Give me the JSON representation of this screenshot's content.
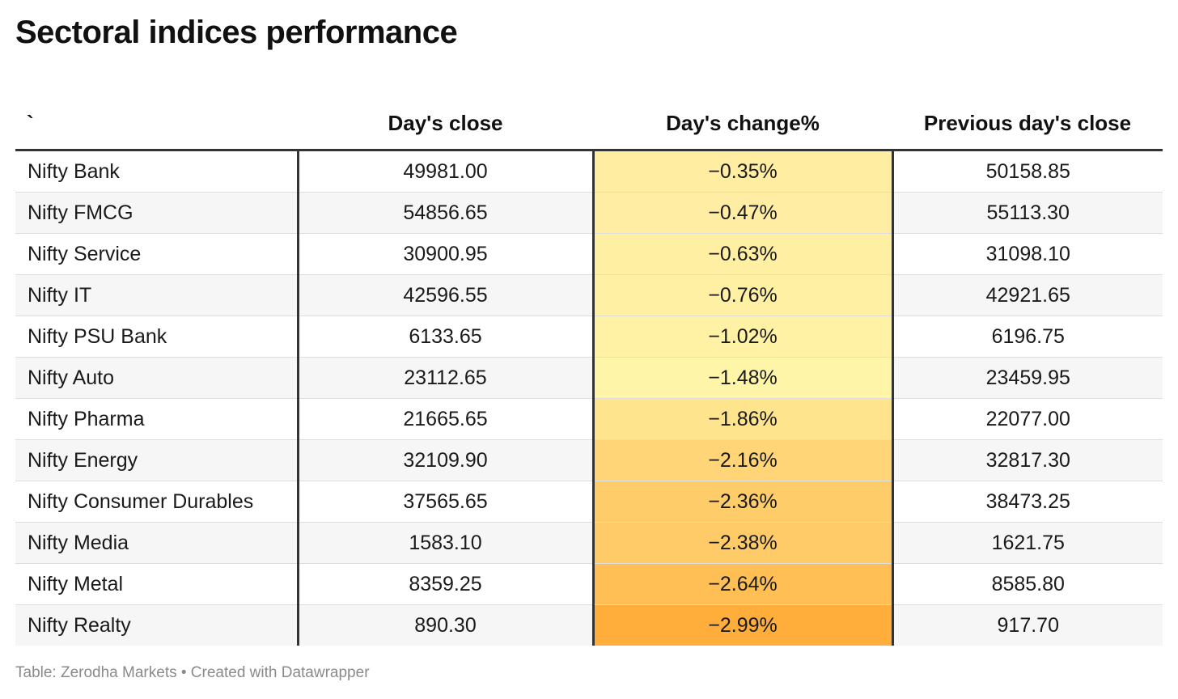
{
  "title": "Sectoral indices performance",
  "footer": "Table: Zerodha Markets • Created with Datawrapper",
  "colors": {
    "heat_low": "#fff5a8",
    "heat_high": "#ffae3c",
    "border": "#333333",
    "row_stripe": "#f6f6f6"
  },
  "chart_data": {
    "type": "table",
    "columns": [
      "`",
      "Day's close",
      "Day's change%",
      "Previous day's close"
    ],
    "rows": [
      {
        "name": "Nifty Bank",
        "close": "49981.00",
        "change": "−0.35%",
        "prev": "50158.85",
        "change_value": -0.35
      },
      {
        "name": "Nifty FMCG",
        "close": "54856.65",
        "change": "−0.47%",
        "prev": "55113.30",
        "change_value": -0.47
      },
      {
        "name": "Nifty Service",
        "close": "30900.95",
        "change": "−0.63%",
        "prev": "31098.10",
        "change_value": -0.63
      },
      {
        "name": "Nifty IT",
        "close": "42596.55",
        "change": "−0.76%",
        "prev": "42921.65",
        "change_value": -0.76
      },
      {
        "name": "Nifty PSU Bank",
        "close": "6133.65",
        "change": "−1.02%",
        "prev": "6196.75",
        "change_value": -1.02
      },
      {
        "name": "Nifty Auto",
        "close": "23112.65",
        "change": "−1.48%",
        "prev": "23459.95",
        "change_value": -1.48
      },
      {
        "name": "Nifty Pharma",
        "close": "21665.65",
        "change": "−1.86%",
        "prev": "22077.00",
        "change_value": -1.86
      },
      {
        "name": "Nifty Energy",
        "close": "32109.90",
        "change": "−2.16%",
        "prev": "32817.30",
        "change_value": -2.16
      },
      {
        "name": "Nifty Consumer Durables",
        "close": "37565.65",
        "change": "−2.36%",
        "prev": "38473.25",
        "change_value": -2.36
      },
      {
        "name": "Nifty Media",
        "close": "1583.10",
        "change": "−2.38%",
        "prev": "1621.75",
        "change_value": -2.38
      },
      {
        "name": "Nifty Metal",
        "close": "8359.25",
        "change": "−2.64%",
        "prev": "8585.80",
        "change_value": -2.64
      },
      {
        "name": "Nifty Realty",
        "close": "890.30",
        "change": "−2.99%",
        "prev": "917.70",
        "change_value": -2.99
      }
    ]
  }
}
